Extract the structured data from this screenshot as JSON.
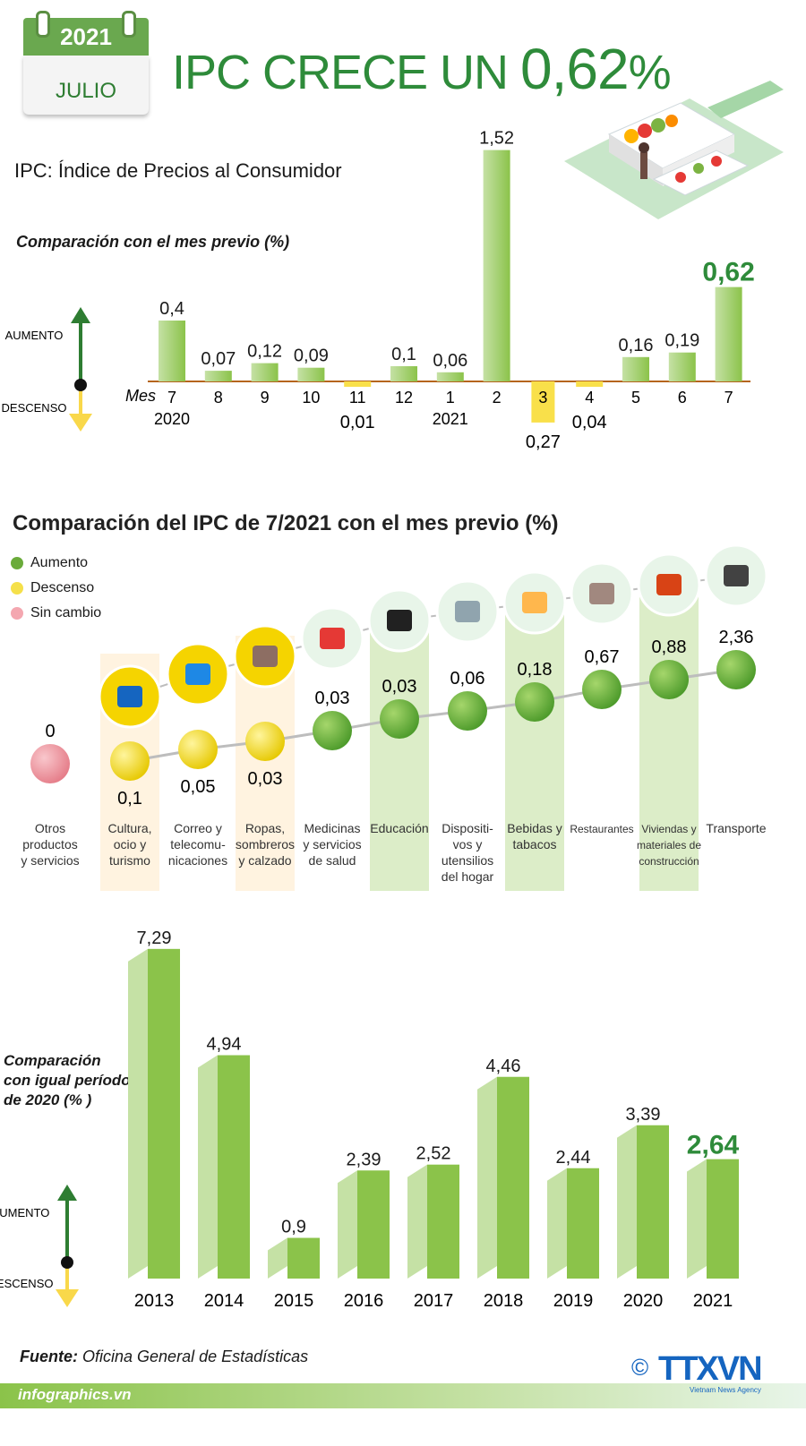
{
  "header": {
    "year": "2021",
    "month": "JULIO",
    "title_prefix": "IPC CRECE UN ",
    "title_value": "0,62",
    "title_suffix": "%",
    "subtitle": "IPC:  Índice de Precios al Consumidor"
  },
  "colors": {
    "green": "#2e8b3a",
    "bar": "#9ccc65",
    "yellow": "#f5e04a",
    "pink": "#f4a7b0",
    "brand": "#1565c0"
  },
  "chart_data": [
    {
      "type": "bar",
      "title": "Comparación con el mes previo (%)",
      "xlabel": "Mes",
      "axis_up": "AUMENTO",
      "axis_down": "DESCENSO",
      "categories": [
        "7",
        "8",
        "9",
        "10",
        "11",
        "12",
        "1",
        "2",
        "3",
        "4",
        "5",
        "6",
        "7"
      ],
      "year_labels": [
        "2020",
        "",
        "",
        "",
        "",
        "",
        "2021",
        "",
        "",
        "",
        "",
        "",
        ""
      ],
      "values": [
        0.4,
        0.07,
        0.12,
        0.09,
        -0.01,
        0.1,
        0.06,
        1.52,
        -0.27,
        -0.04,
        0.16,
        0.19,
        0.62
      ],
      "value_labels": [
        "0,4",
        "0,07",
        "0,12",
        "0,09",
        "0,01",
        "0,1",
        "0,06",
        "1,52",
        "0,27",
        "0,04",
        "0,16",
        "0,19",
        "0,62"
      ],
      "highlight_index": 12
    },
    {
      "type": "line",
      "title": "Comparación del IPC de 7/2021 con el mes previo (%)",
      "legend": [
        {
          "label": "Aumento",
          "color": "#6aab3a"
        },
        {
          "label": "Descenso",
          "color": "#f5e04a"
        },
        {
          "label": "Sin cambio",
          "color": "#f4a7b0"
        }
      ],
      "categories": [
        {
          "lines": [
            "Otros",
            "productos",
            "y servicios"
          ],
          "value": 0,
          "label": "0",
          "status": "none"
        },
        {
          "lines": [
            "Cultura,",
            "ocio y",
            "turismo"
          ],
          "value": -0.1,
          "label": "0,1",
          "status": "down"
        },
        {
          "lines": [
            "Correo y",
            "telecomu-",
            "nicaciones"
          ],
          "value": -0.05,
          "label": "0,05",
          "status": "down"
        },
        {
          "lines": [
            "Ropas,",
            "sombreros",
            "y calzado"
          ],
          "value": -0.03,
          "label": "0,03",
          "status": "down"
        },
        {
          "lines": [
            "Medicinas",
            "y servicios",
            "de salud"
          ],
          "value": 0.03,
          "label": "0,03",
          "status": "up"
        },
        {
          "lines": [
            "Educación"
          ],
          "value": 0.03,
          "label": "0,03",
          "status": "up"
        },
        {
          "lines": [
            "Dispositi-",
            "vos y",
            "utensilios",
            "del hogar"
          ],
          "value": 0.06,
          "label": "0,06",
          "status": "up"
        },
        {
          "lines": [
            "Bebidas y",
            "tabacos"
          ],
          "value": 0.18,
          "label": "0,18",
          "status": "up"
        },
        {
          "lines": [
            "Restaurantes"
          ],
          "value": 0.67,
          "label": "0,67",
          "status": "up"
        },
        {
          "lines": [
            "Viviendas y",
            "materiales de",
            "construcción"
          ],
          "value": 0.88,
          "label": "0,88",
          "status": "up"
        },
        {
          "lines": [
            "Transporte"
          ],
          "value": 2.36,
          "label": "2,36",
          "status": "up"
        }
      ]
    },
    {
      "type": "bar",
      "title_lines": [
        "Comparación",
        "con igual período",
        "de 2020 (% )"
      ],
      "axis_up": "AUMENTO",
      "axis_down": "DESCENSO",
      "categories": [
        "2013",
        "2014",
        "2015",
        "2016",
        "2017",
        "2018",
        "2019",
        "2020",
        "2021"
      ],
      "values": [
        7.29,
        4.94,
        0.9,
        2.39,
        2.52,
        4.46,
        2.44,
        3.39,
        2.64
      ],
      "value_labels": [
        "7,29",
        "4,94",
        "0,9",
        "2,39",
        "2,52",
        "4,46",
        "2,44",
        "3,39",
        "2,64"
      ],
      "highlight_index": 8
    }
  ],
  "footer": {
    "source_label": "Fuente:",
    "source_text": "Oficina General de Estadísticas",
    "website": "infographics.vn",
    "copyright": "©",
    "agency": "TTXVN",
    "agency_sub": "Vietnam News Agency"
  }
}
